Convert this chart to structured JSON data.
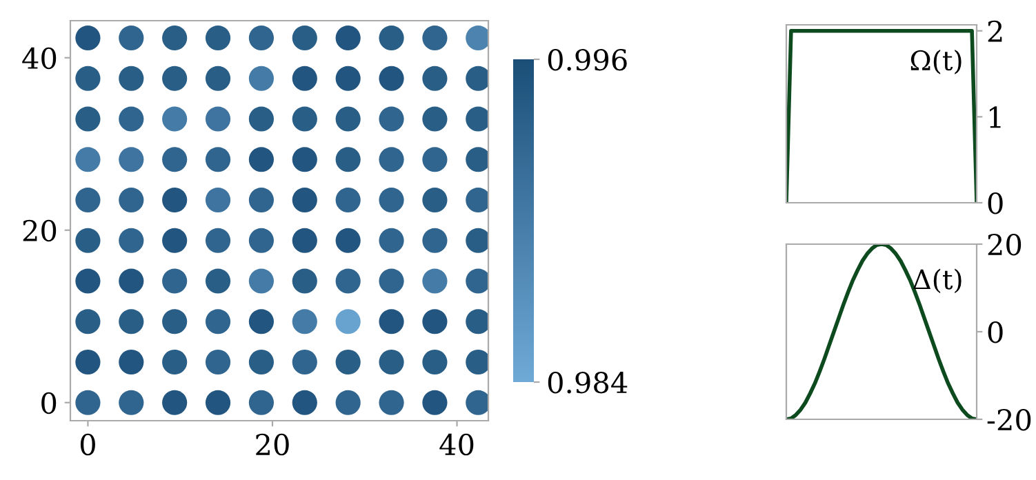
{
  "chart_data": [
    {
      "type": "scatter",
      "xlim": [
        -1.9,
        43.4
      ],
      "ylim": [
        -2.1,
        44.3
      ],
      "xticks": [
        0,
        20,
        40
      ],
      "yticks": [
        0,
        20,
        40
      ],
      "grid": false,
      "clim": [
        0.984,
        0.996
      ],
      "cticks": [
        0.984,
        0.996
      ],
      "series": [
        {
          "x": [
            0,
            4.7,
            9.4,
            14.1,
            18.8,
            23.5,
            28.2,
            32.9,
            37.6,
            42.3,
            0,
            4.7,
            9.4,
            14.1,
            18.8,
            23.5,
            28.2,
            32.9,
            37.6,
            42.3,
            0,
            4.7,
            9.4,
            14.1,
            18.8,
            23.5,
            28.2,
            32.9,
            37.6,
            42.3,
            0,
            4.7,
            9.4,
            14.1,
            18.8,
            23.5,
            28.2,
            32.9,
            37.6,
            42.3,
            0,
            4.7,
            9.4,
            14.1,
            18.8,
            23.5,
            28.2,
            32.9,
            37.6,
            42.3,
            0,
            4.7,
            9.4,
            14.1,
            18.8,
            23.5,
            28.2,
            32.9,
            37.6,
            42.3,
            0,
            4.7,
            9.4,
            14.1,
            18.8,
            23.5,
            28.2,
            32.9,
            37.6,
            42.3,
            0,
            4.7,
            9.4,
            14.1,
            18.8,
            23.5,
            28.2,
            32.9,
            37.6,
            42.3,
            0,
            4.7,
            9.4,
            14.1,
            18.8,
            23.5,
            28.2,
            32.9,
            37.6,
            42.3,
            0,
            4.7,
            9.4,
            14.1,
            18.8,
            23.5,
            28.2,
            32.9,
            37.6,
            42.3
          ],
          "values": [
            0,
            0,
            0,
            0,
            0,
            0,
            0,
            0,
            0,
            0,
            4.7,
            4.7,
            4.7,
            4.7,
            4.7,
            4.7,
            4.7,
            4.7,
            4.7,
            4.7,
            9.4,
            9.4,
            9.4,
            9.4,
            9.4,
            9.4,
            9.4,
            9.4,
            9.4,
            9.4,
            14.1,
            14.1,
            14.1,
            14.1,
            14.1,
            14.1,
            14.1,
            14.1,
            14.1,
            14.1,
            18.8,
            18.8,
            18.8,
            18.8,
            18.8,
            18.8,
            18.8,
            18.8,
            18.8,
            18.8,
            23.5,
            23.5,
            23.5,
            23.5,
            23.5,
            23.5,
            23.5,
            23.5,
            23.5,
            23.5,
            28.2,
            28.2,
            28.2,
            28.2,
            28.2,
            28.2,
            28.2,
            28.2,
            28.2,
            28.2,
            32.9,
            32.9,
            32.9,
            32.9,
            32.9,
            32.9,
            32.9,
            32.9,
            32.9,
            32.9,
            37.6,
            37.6,
            37.6,
            37.6,
            37.6,
            37.6,
            37.6,
            37.6,
            37.6,
            37.6,
            42.3,
            42.3,
            42.3,
            42.3,
            42.3,
            42.3,
            42.3,
            42.3,
            42.3,
            42.3
          ],
          "cvalues": [
            0.993,
            0.993,
            0.995,
            0.995,
            0.993,
            0.995,
            0.993,
            0.993,
            0.995,
            0.993,
            0.995,
            0.995,
            0.994,
            0.993,
            0.994,
            0.993,
            0.994,
            0.994,
            0.994,
            0.994,
            0.994,
            0.994,
            0.994,
            0.993,
            0.995,
            0.99,
            0.985,
            0.995,
            0.995,
            0.994,
            0.995,
            0.995,
            0.993,
            0.994,
            0.99,
            0.994,
            0.993,
            0.993,
            0.99,
            0.993,
            0.994,
            0.993,
            0.995,
            0.993,
            0.993,
            0.995,
            0.995,
            0.993,
            0.993,
            0.994,
            0.993,
            0.993,
            0.995,
            0.991,
            0.993,
            0.995,
            0.993,
            0.993,
            0.994,
            0.993,
            0.99,
            0.991,
            0.993,
            0.993,
            0.995,
            0.995,
            0.994,
            0.993,
            0.993,
            0.994,
            0.994,
            0.993,
            0.99,
            0.991,
            0.994,
            0.994,
            0.994,
            0.993,
            0.994,
            0.994,
            0.994,
            0.994,
            0.994,
            0.994,
            0.99,
            0.995,
            0.995,
            0.995,
            0.994,
            0.994,
            0.995,
            0.993,
            0.994,
            0.994,
            0.993,
            0.994,
            0.995,
            0.994,
            0.993,
            0.989
          ]
        }
      ]
    },
    {
      "type": "line",
      "categories": [
        null,
        null,
        null,
        null,
        null,
        null,
        null,
        null,
        null,
        null,
        null,
        null,
        null,
        null,
        null,
        null,
        null,
        null,
        null,
        null,
        null,
        null,
        null,
        null,
        null,
        null,
        null,
        null,
        null,
        null,
        null,
        null,
        null,
        null,
        null,
        null,
        null,
        null,
        null,
        null,
        null
      ],
      "ylim": [
        0,
        2.07
      ],
      "yticks": [
        0,
        1,
        2
      ],
      "tick_labels": "y",
      "grid": false,
      "annotations": [
        "Ω(t)"
      ],
      "series": [
        {
          "color": "#0d4a1e",
          "values": [
            0,
            2,
            2,
            2,
            2,
            2,
            2,
            2,
            2,
            2,
            2,
            2,
            2,
            2,
            2,
            2,
            2,
            2,
            2,
            2,
            2,
            2,
            2,
            2,
            2,
            2,
            2,
            2,
            2,
            2,
            2,
            2,
            2,
            2,
            2,
            2,
            2,
            2,
            2,
            2,
            0
          ]
        }
      ]
    },
    {
      "type": "line",
      "categories": [
        null,
        null,
        null,
        null,
        null,
        null,
        null,
        null,
        null,
        null,
        null,
        null,
        null,
        null,
        null,
        null,
        null,
        null,
        null,
        null,
        null,
        null,
        null,
        null,
        null,
        null,
        null,
        null,
        null,
        null,
        null,
        null,
        null,
        null,
        null,
        null,
        null,
        null,
        null,
        null,
        null
      ],
      "ylim": [
        -20,
        20
      ],
      "yticks": [
        -20,
        0,
        20
      ],
      "tick_labels": "y",
      "grid": false,
      "annotations": [
        "Δ(t)"
      ],
      "series": [
        {
          "color": "#0d4a1e",
          "values": [
            -20,
            -19.8,
            -19.0,
            -17.8,
            -16.2,
            -14.1,
            -11.8,
            -9.1,
            -6.2,
            -3.1,
            0,
            3.1,
            6.2,
            9.1,
            11.8,
            14.1,
            16.2,
            17.8,
            19.0,
            19.8,
            20,
            19.8,
            19.0,
            17.8,
            16.2,
            14.1,
            11.8,
            9.1,
            6.2,
            3.1,
            0,
            -3.1,
            -6.2,
            -9.1,
            -11.8,
            -14.1,
            -16.2,
            -17.8,
            -19.0,
            -19.8,
            -20
          ]
        }
      ]
    }
  ]
}
